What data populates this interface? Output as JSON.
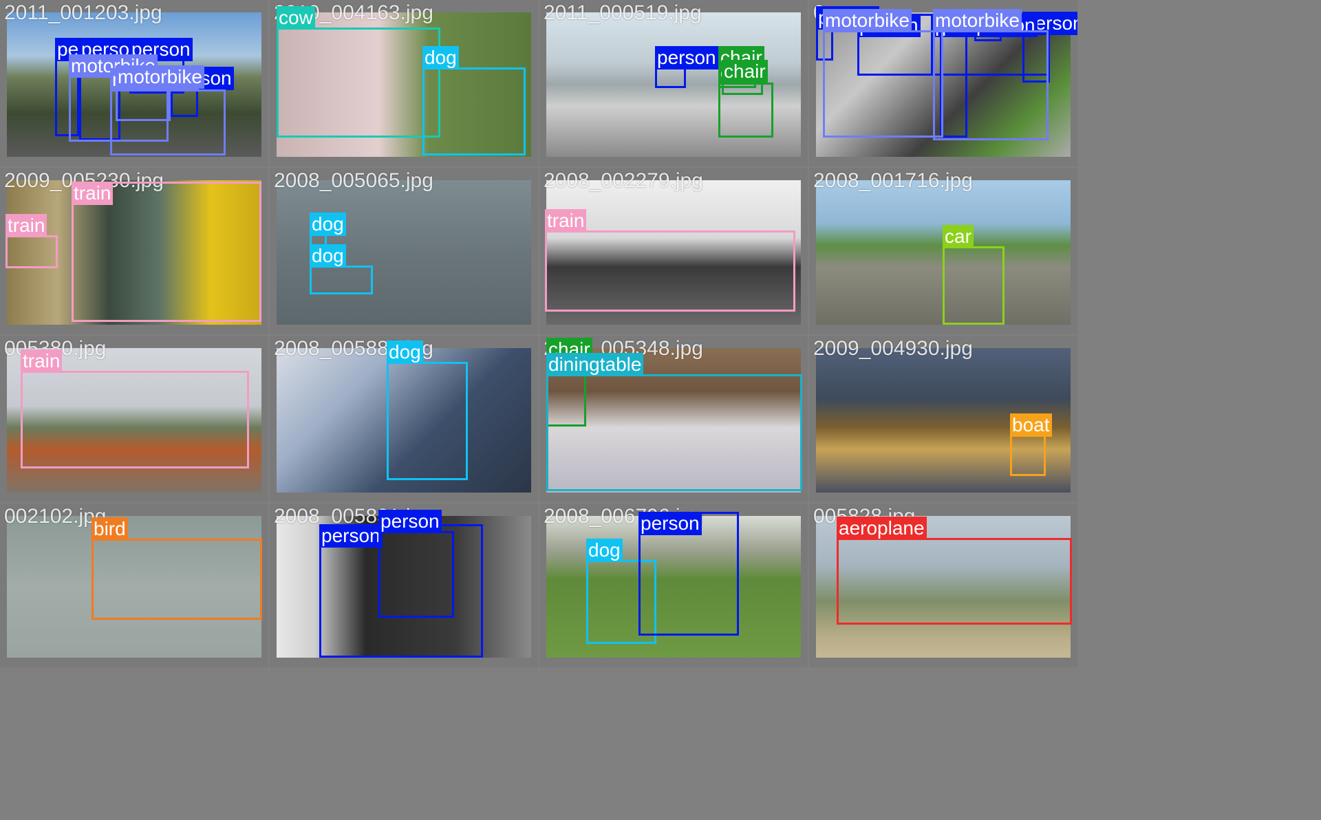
{
  "colors": {
    "person": "#0018ec",
    "motorbike": "#6f7df7",
    "chair": "#17a02a",
    "cow": "#19c9b4",
    "dog": "#10c2f2",
    "train": "#f39cc4",
    "car": "#8bd11a",
    "diningtable": "#1ab3c9",
    "boat": "#f7a21b",
    "bird": "#f07c22",
    "aeroplane": "#ee2b2b"
  },
  "tiles": [
    {
      "filename": "2011_001203.jpg",
      "bg": "linear-gradient(180deg,#6a9ed6 0%,#a9c6e0 30%,#6f7f5a 45%,#3c4a32 70%,#5a5a5a 100%)",
      "boxes": [
        {
          "cls": "person",
          "label": "person"
        },
        {
          "cls": "person",
          "label": "person"
        },
        {
          "cls": "person",
          "label": "person"
        },
        {
          "cls": "person",
          "label": "person"
        },
        {
          "cls": "motorbike",
          "label": "motorbike"
        },
        {
          "cls": "motorbike",
          "label": "motorbike"
        },
        {
          "cls": "motorbike",
          "label": "motorbike"
        }
      ]
    },
    {
      "filename": "2010_004163.jpg",
      "bg": "linear-gradient(90deg,#c9b3b3 0%,#e4cfd0 40%,#6d8a4a 60%,#5a7a3c 100%)",
      "boxes": [
        {
          "cls": "cow",
          "label": "cow"
        },
        {
          "cls": "dog",
          "label": "dog"
        }
      ]
    },
    {
      "filename": "2011_000519.jpg",
      "bg": "linear-gradient(180deg,#d6e3ea 0%,#c0ccd2 35%,#9ea7aa 50%,#cfcfcf 65%,#8a8a8a 100%)",
      "boxes": [
        {
          "cls": "person",
          "label": "person"
        },
        {
          "cls": "chair",
          "label": "chair"
        },
        {
          "cls": "chair",
          "label": "chair"
        },
        {
          "cls": "chair",
          "label": "chair"
        }
      ]
    },
    {
      "filename": "0",
      "bg": "linear-gradient(135deg,#8f8f8f 0%,#c8c8c8 30%,#3f3f3f 60%,#5a8f3a 80%,#aaaaaa 100%)",
      "boxes": [
        {
          "cls": "person",
          "label": "person"
        },
        {
          "cls": "person",
          "label": "person"
        },
        {
          "cls": "person",
          "label": "person"
        },
        {
          "cls": "person",
          "label": "person"
        },
        {
          "cls": "person",
          "label": "person"
        },
        {
          "cls": "person",
          "label": "person"
        },
        {
          "cls": "motorbike",
          "label": "motorbike"
        },
        {
          "cls": "motorbike",
          "label": "motorbike"
        }
      ]
    },
    {
      "filename": "2009_005230.jpg",
      "bg": "linear-gradient(90deg,#8d7d4e 0%,#b8a77a 20%,#3b4a3e 40%,#5d7466 60%,#e5c21a 80%,#c9a918 100%)",
      "boxes": [
        {
          "cls": "train",
          "label": "train"
        },
        {
          "cls": "train",
          "label": "train"
        }
      ]
    },
    {
      "filename": "2008_005065.jpg",
      "bg": "linear-gradient(180deg,#7e8c92 0%,#6a767a 50%,#5c686c 100%)",
      "boxes": [
        {
          "cls": "dog",
          "label": "dog"
        },
        {
          "cls": "dog",
          "label": "dog"
        }
      ]
    },
    {
      "filename": "2008_002279.jpg",
      "bg": "linear-gradient(180deg,#f0f0f0 0%,#d8d8d8 40%,#3a3a3a 60%,#6a6a6a 100%)",
      "boxes": [
        {
          "cls": "train",
          "label": "train"
        }
      ]
    },
    {
      "filename": "2008_001716.jpg",
      "bg": "linear-gradient(180deg,#a9cbe6 0%,#8fb7d6 30%,#5e8f46 45%,#8b8b7e 60%,#6f6f66 100%)",
      "boxes": [
        {
          "cls": "car",
          "label": "car"
        }
      ]
    },
    {
      "filename": "005380.jpg",
      "bg": "linear-gradient(180deg,#d3d7dc 0%,#c6cad0 40%,#6b7c5c 55%,#b35b2d 70%,#7f7468 100%)",
      "boxes": [
        {
          "cls": "train",
          "label": "train"
        }
      ]
    },
    {
      "filename": "2008_005883.jpg",
      "bg": "linear-gradient(135deg,#d8dde6 0%,#9eaec6 30%,#3d4f6a 60%,#2b3648 100%)",
      "boxes": [
        {
          "cls": "dog",
          "label": "dog"
        }
      ]
    },
    {
      "filename": "2008_005348.jpg",
      "bg": "linear-gradient(180deg,#8a6f54 0%,#6f5640 30%,#d9d7d8 55%,#b9b7c4 100%)",
      "boxes": [
        {
          "cls": "chair",
          "label": "chair"
        },
        {
          "cls": "diningtable",
          "label": "diningtable"
        }
      ]
    },
    {
      "filename": "2009_004930.jpg",
      "bg": "linear-gradient(180deg,#52617a 0%,#3e4a5c 35%,#7b6030 55%,#c8a356 70%,#4a5060 100%)",
      "boxes": [
        {
          "cls": "boat",
          "label": "boat"
        }
      ]
    },
    {
      "filename": "002102.jpg",
      "bg": "linear-gradient(180deg,#8c9a96 0%,#a2aca8 50%,#9aa4a0 100%)",
      "boxes": [
        {
          "cls": "bird",
          "label": "bird"
        }
      ]
    },
    {
      "filename": "2008_005831.jpg",
      "bg": "linear-gradient(90deg,#e8e8e8 0%,#cfcfcf 15%,#2a2a2a 35%,#3a3a3a 70%,#8a8a8a 100%)",
      "boxes": [
        {
          "cls": "person",
          "label": "person"
        },
        {
          "cls": "person",
          "label": "person"
        }
      ]
    },
    {
      "filename": "2008_006796.jpg",
      "bg": "linear-gradient(180deg,#d8dcd4 0%,#9aa08e 25%,#5f8a3a 45%,#6f9a44 100%)",
      "boxes": [
        {
          "cls": "dog",
          "label": "dog"
        },
        {
          "cls": "person",
          "label": "person"
        }
      ]
    },
    {
      "filename": "005828.jpg",
      "bg": "linear-gradient(180deg,#bcc8d2 0%,#a5b4bf 35%,#7f8f68 60%,#b8ad88 85%,#c6b896 100%)",
      "boxes": [
        {
          "cls": "aeroplane",
          "label": "aeroplane"
        }
      ]
    }
  ]
}
